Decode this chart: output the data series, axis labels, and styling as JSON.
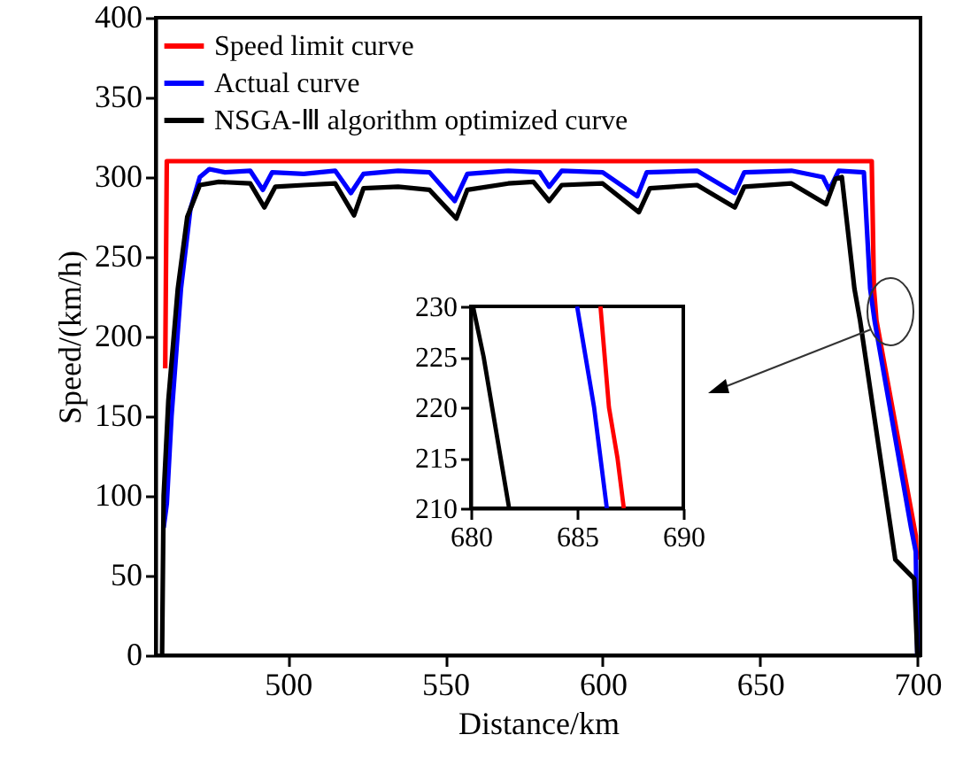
{
  "chart_data": [
    {
      "type": "line",
      "xlabel": "Distance/km",
      "ylabel": "Speed/(km/h)",
      "xlim": [
        458,
        701
      ],
      "ylim": [
        0,
        400
      ],
      "xticks": [
        500,
        550,
        600,
        650,
        700
      ],
      "yticks": [
        0,
        50,
        100,
        150,
        200,
        250,
        300,
        350,
        400
      ],
      "legend": "top left",
      "series": [
        {
          "name": "Speed limit curve",
          "color": "#ff0000",
          "x": [
            461,
            461.5,
            685.5,
            686.2,
            687,
            699.5,
            699.8
          ],
          "values": [
            180,
            310,
            310,
            230,
            210,
            75,
            60
          ]
        },
        {
          "name": "Actual curve",
          "color": "#0000ff",
          "x": [
            460.5,
            461.5,
            463,
            466,
            469,
            472,
            475,
            480,
            488,
            492,
            495,
            505,
            515,
            520,
            524,
            535,
            545,
            553,
            557,
            570,
            580,
            583,
            587,
            600,
            611,
            614,
            630,
            642,
            645,
            660,
            670,
            672,
            675,
            683,
            685,
            686.4,
            698,
            699.5,
            700
          ],
          "values": [
            80,
            95,
            150,
            230,
            280,
            300,
            305,
            303,
            304,
            292,
            303,
            302,
            304,
            290,
            302,
            304,
            303,
            285,
            302,
            304,
            303,
            294,
            304,
            303,
            288,
            303,
            304,
            290,
            303,
            304,
            300,
            292,
            304,
            303,
            230,
            210,
            80,
            65,
            0
          ]
        },
        {
          "name": "NSGA-Ⅲ algorithm optimized curve",
          "color": "#000000",
          "x": [
            460,
            460.5,
            462,
            465,
            468,
            472,
            478,
            488,
            492.5,
            496,
            505,
            515,
            521,
            524,
            535,
            545,
            553.5,
            557,
            570,
            578,
            583,
            587,
            600,
            611.5,
            615,
            630,
            642,
            645,
            660,
            671,
            674,
            676,
            680,
            681.8,
            693,
            699,
            700
          ],
          "values": [
            0,
            100,
            160,
            230,
            275,
            295,
            297,
            296,
            281,
            294,
            295,
            296,
            276,
            293,
            294,
            292,
            274,
            292,
            296,
            297,
            285,
            295,
            296,
            278,
            293,
            295,
            281,
            294,
            296,
            283,
            299,
            300,
            230,
            210,
            60,
            48,
            0
          ]
        }
      ]
    },
    {
      "type": "line",
      "xlim": [
        680,
        690
      ],
      "ylim": [
        210,
        230
      ],
      "xticks": [
        680,
        685,
        690
      ],
      "yticks": [
        210,
        215,
        220,
        225,
        230
      ],
      "series": [
        {
          "color": "#ff0000",
          "x": [
            686.1,
            686.5,
            686.9,
            687.2
          ],
          "values": [
            230,
            220,
            215,
            210
          ]
        },
        {
          "color": "#0000ff",
          "x": [
            685,
            685.4,
            685.8,
            686.1,
            686.4
          ],
          "values": [
            230,
            225,
            220,
            215,
            210
          ]
        },
        {
          "color": "#000000",
          "x": [
            680.1,
            680.6,
            681,
            681.4,
            681.8
          ],
          "values": [
            230,
            225,
            220,
            215,
            210
          ]
        }
      ]
    }
  ]
}
